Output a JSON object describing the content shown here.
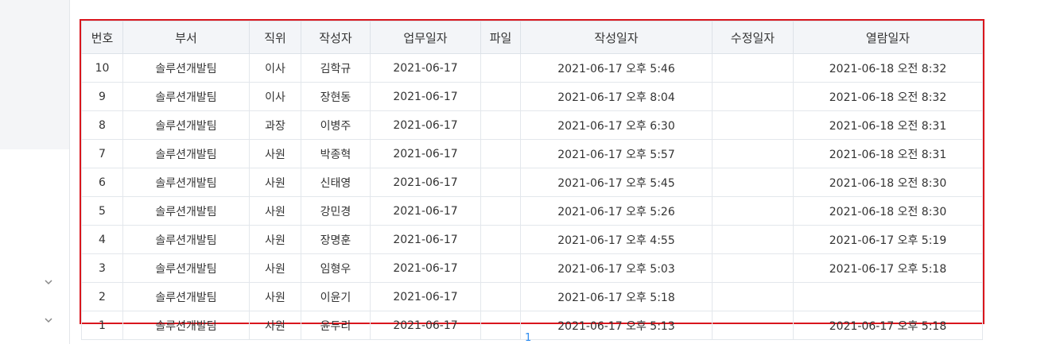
{
  "table": {
    "headers": [
      "번호",
      "부서",
      "직위",
      "작성자",
      "업무일자",
      "파일",
      "작성일자",
      "수정일자",
      "열람일자"
    ],
    "rows": [
      [
        "10",
        "솔루션개발팀",
        "이사",
        "김학규",
        "2021-06-17",
        "",
        "2021-06-17 오후 5:46",
        "",
        "2021-06-18 오전 8:32"
      ],
      [
        "9",
        "솔루션개발팀",
        "이사",
        "장현동",
        "2021-06-17",
        "",
        "2021-06-17 오후 8:04",
        "",
        "2021-06-18 오전 8:32"
      ],
      [
        "8",
        "솔루션개발팀",
        "과장",
        "이병주",
        "2021-06-17",
        "",
        "2021-06-17 오후 6:30",
        "",
        "2021-06-18 오전 8:31"
      ],
      [
        "7",
        "솔루션개발팀",
        "사원",
        "박종혁",
        "2021-06-17",
        "",
        "2021-06-17 오후 5:57",
        "",
        "2021-06-18 오전 8:31"
      ],
      [
        "6",
        "솔루션개발팀",
        "사원",
        "신태영",
        "2021-06-17",
        "",
        "2021-06-17 오후 5:45",
        "",
        "2021-06-18 오전 8:30"
      ],
      [
        "5",
        "솔루션개발팀",
        "사원",
        "강민경",
        "2021-06-17",
        "",
        "2021-06-17 오후 5:26",
        "",
        "2021-06-18 오전 8:30"
      ],
      [
        "4",
        "솔루션개발팀",
        "사원",
        "장명훈",
        "2021-06-17",
        "",
        "2021-06-17 오후 4:55",
        "",
        "2021-06-17 오후 5:19"
      ],
      [
        "3",
        "솔루션개발팀",
        "사원",
        "임형우",
        "2021-06-17",
        "",
        "2021-06-17 오후 5:03",
        "",
        "2021-06-17 오후 5:18"
      ],
      [
        "2",
        "솔루션개발팀",
        "사원",
        "이윤기",
        "2021-06-17",
        "",
        "2021-06-17 오후 5:18",
        "",
        ""
      ],
      [
        "1",
        "솔루션개발팀",
        "사원",
        "윤두리",
        "2021-06-17",
        "",
        "2021-06-17 오후 5:13",
        "",
        "2021-06-17 오후 5:18"
      ]
    ]
  },
  "pagination": {
    "current": "1"
  }
}
